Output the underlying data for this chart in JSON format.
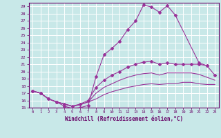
{
  "xlabel": "Windchill (Refroidissement éolien,°C)",
  "bg_color": "#c8e8e8",
  "grid_color": "#ffffff",
  "line_color": "#993399",
  "xlim": [
    -0.5,
    23.5
  ],
  "ylim": [
    15,
    29.5
  ],
  "xticks": [
    0,
    1,
    2,
    3,
    4,
    5,
    6,
    7,
    8,
    9,
    10,
    11,
    12,
    13,
    14,
    15,
    16,
    17,
    18,
    19,
    20,
    21,
    22,
    23
  ],
  "yticks": [
    15,
    16,
    17,
    18,
    19,
    20,
    21,
    22,
    23,
    24,
    25,
    26,
    27,
    28,
    29
  ],
  "series": {
    "upper": {
      "x": [
        0,
        1,
        2,
        3,
        4,
        5,
        6,
        7,
        8,
        9,
        10,
        11,
        12,
        13,
        14,
        15,
        16,
        17,
        18,
        21,
        22
      ],
      "y": [
        17.3,
        17.0,
        16.2,
        15.8,
        15.2,
        14.9,
        15.0,
        15.3,
        19.3,
        22.3,
        23.2,
        24.2,
        25.8,
        27.0,
        29.2,
        28.9,
        28.2,
        29.1,
        27.8,
        21.2,
        20.8
      ]
    },
    "mid_upper": {
      "x": [
        0,
        1,
        2,
        3,
        4,
        5,
        6,
        7,
        8,
        9,
        10,
        11,
        12,
        13,
        14,
        15,
        16,
        17,
        18,
        19,
        20,
        21,
        22,
        23
      ],
      "y": [
        17.3,
        17.0,
        16.2,
        15.8,
        15.5,
        15.2,
        15.5,
        16.0,
        17.8,
        18.8,
        19.5,
        20.0,
        20.6,
        21.0,
        21.3,
        21.4,
        21.0,
        21.2,
        21.0,
        21.0,
        21.0,
        21.0,
        20.8,
        19.5
      ]
    },
    "mid_lower": {
      "x": [
        0,
        1,
        2,
        3,
        4,
        5,
        6,
        7,
        8,
        9,
        10,
        11,
        12,
        13,
        14,
        15,
        16,
        17,
        18,
        19,
        20,
        21,
        22,
        23
      ],
      "y": [
        17.3,
        17.0,
        16.2,
        15.8,
        15.5,
        15.2,
        15.4,
        15.8,
        17.0,
        17.8,
        18.3,
        18.8,
        19.2,
        19.5,
        19.7,
        19.8,
        19.5,
        19.8,
        19.8,
        19.8,
        19.8,
        19.6,
        19.2,
        18.8
      ]
    },
    "lower": {
      "x": [
        0,
        1,
        2,
        3,
        4,
        5,
        6,
        7,
        8,
        9,
        10,
        11,
        12,
        13,
        14,
        15,
        16,
        17,
        18,
        19,
        20,
        21,
        22,
        23
      ],
      "y": [
        17.3,
        17.0,
        16.2,
        15.8,
        15.5,
        15.2,
        15.4,
        15.8,
        16.2,
        16.8,
        17.2,
        17.5,
        17.8,
        18.0,
        18.2,
        18.3,
        18.2,
        18.3,
        18.3,
        18.5,
        18.5,
        18.3,
        18.2,
        18.2
      ]
    }
  }
}
